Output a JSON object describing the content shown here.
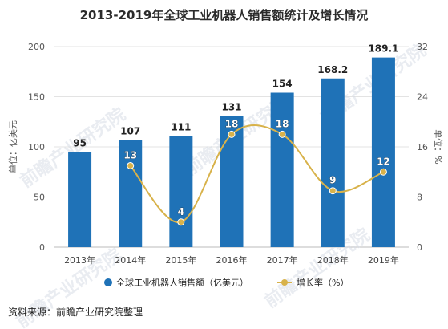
{
  "chart_data": {
    "type": "bar",
    "title": "2013-2019年全球工业机器人销售额统计及增长情况",
    "categories": [
      "2013年",
      "2014年",
      "2015年",
      "2016年",
      "2017年",
      "2018年",
      "2019年"
    ],
    "series": [
      {
        "name": "全球工业机器人销售额（亿美元）",
        "type": "bar",
        "axis": "left",
        "values": [
          95,
          107,
          111,
          131,
          154,
          168.2,
          189.1
        ],
        "labels": [
          "95",
          "107",
          "111",
          "131",
          "154",
          "168.2",
          "189.1"
        ],
        "color": "#1f72b7"
      },
      {
        "name": "增长率（%）",
        "type": "line",
        "axis": "right",
        "values": [
          null,
          13,
          4,
          18,
          18,
          9,
          12
        ],
        "labels": [
          "",
          "13",
          "4",
          "18",
          "18",
          "9",
          "12"
        ],
        "color": "#d8b24a"
      }
    ],
    "ylabel_left": "单位：亿美元",
    "ylabel_right": "单位：%",
    "ylim_left": [
      0,
      200
    ],
    "ylim_right": [
      0,
      32
    ],
    "yticks_left": [
      "0",
      "50",
      "100",
      "150",
      "200"
    ],
    "yticks_right": [
      "0",
      "8",
      "16",
      "24",
      "32"
    ],
    "grid": true,
    "legend_position": "bottom"
  },
  "source_text": "资料来源：前瞻产业研究院整理",
  "watermark": "前瞻产业研究院"
}
